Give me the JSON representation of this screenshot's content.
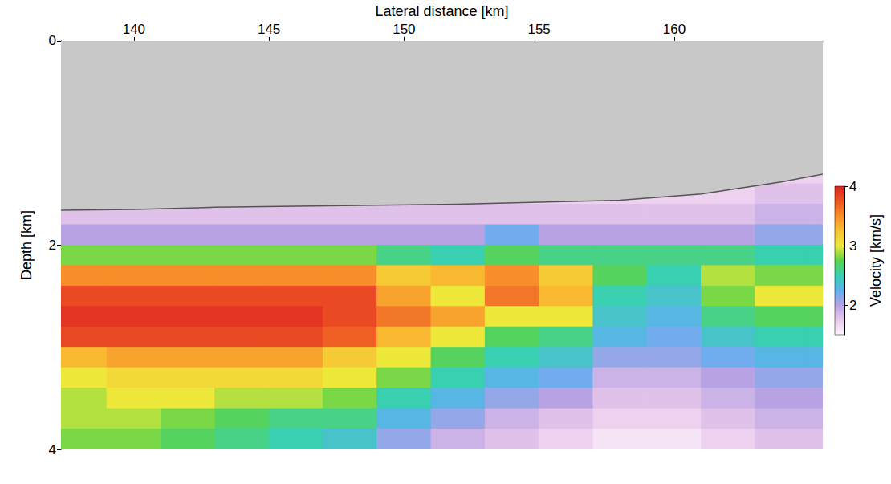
{
  "chart_data": {
    "type": "heatmap",
    "x_label": "Lateral distance [km]",
    "y_label": "Depth [km]",
    "xlim": [
      137.3,
      165.5
    ],
    "xticks": [
      140,
      145,
      150,
      155,
      160
    ],
    "ylim": [
      0,
      4
    ],
    "yticks": [
      0,
      2,
      4
    ],
    "x": [
      138,
      140,
      142,
      144,
      146,
      148,
      150,
      152,
      154,
      156,
      158,
      160,
      162,
      164,
      166
    ],
    "y": [
      0.1,
      0.3,
      0.5,
      0.7,
      0.9,
      1.1,
      1.3,
      1.5,
      1.7,
      1.9,
      2.1,
      2.3,
      2.5,
      2.7,
      2.9,
      3.1,
      3.3,
      3.5,
      3.7,
      3.9
    ],
    "values": [
      [
        null,
        null,
        null,
        null,
        null,
        null,
        null,
        null,
        null,
        null,
        null,
        null,
        null,
        null,
        null
      ],
      [
        null,
        null,
        null,
        null,
        null,
        null,
        null,
        null,
        null,
        null,
        null,
        null,
        null,
        null,
        null
      ],
      [
        null,
        null,
        null,
        null,
        null,
        null,
        null,
        null,
        null,
        null,
        null,
        null,
        null,
        null,
        null
      ],
      [
        null,
        null,
        null,
        null,
        null,
        null,
        null,
        null,
        null,
        null,
        null,
        null,
        null,
        null,
        null
      ],
      [
        null,
        null,
        null,
        null,
        null,
        null,
        null,
        null,
        null,
        null,
        null,
        null,
        null,
        null,
        null
      ],
      [
        null,
        null,
        null,
        null,
        null,
        null,
        null,
        null,
        null,
        null,
        null,
        null,
        null,
        null,
        null
      ],
      [
        1.7,
        1.7,
        1.7,
        1.7,
        1.7,
        1.7,
        1.7,
        1.7,
        1.7,
        1.7,
        1.7,
        1.7,
        1.7,
        1.7,
        1.7
      ],
      [
        1.7,
        1.7,
        1.7,
        1.7,
        1.7,
        1.7,
        1.7,
        1.7,
        1.7,
        1.7,
        1.7,
        1.7,
        1.7,
        1.8,
        1.8
      ],
      [
        1.8,
        1.8,
        1.8,
        1.8,
        1.8,
        1.8,
        1.8,
        1.8,
        1.8,
        1.8,
        1.8,
        1.8,
        1.8,
        1.9,
        1.9
      ],
      [
        2.0,
        2.0,
        2.0,
        2.0,
        2.0,
        2.0,
        2.0,
        2.0,
        2.2,
        2.0,
        2.0,
        2.0,
        2.0,
        2.1,
        2.1
      ],
      [
        2.8,
        2.8,
        2.8,
        2.8,
        2.8,
        2.8,
        2.6,
        2.5,
        2.7,
        2.6,
        2.6,
        2.6,
        2.6,
        2.5,
        2.5
      ],
      [
        3.5,
        3.5,
        3.5,
        3.5,
        3.5,
        3.5,
        3.2,
        3.3,
        3.5,
        3.2,
        2.7,
        2.5,
        2.9,
        2.8,
        2.8
      ],
      [
        3.8,
        3.8,
        3.8,
        3.8,
        3.8,
        3.8,
        3.4,
        3.0,
        3.6,
        3.3,
        2.5,
        2.4,
        2.8,
        3.0,
        3.0
      ],
      [
        3.9,
        3.9,
        3.9,
        3.9,
        3.9,
        3.8,
        3.6,
        3.4,
        3.0,
        3.0,
        2.4,
        2.3,
        2.6,
        2.7,
        2.7
      ],
      [
        3.8,
        3.8,
        3.8,
        3.8,
        3.8,
        3.7,
        3.3,
        3.0,
        2.7,
        2.6,
        2.3,
        2.2,
        2.4,
        2.5,
        2.5
      ],
      [
        3.3,
        3.4,
        3.4,
        3.4,
        3.4,
        3.2,
        3.0,
        2.7,
        2.5,
        2.4,
        2.1,
        2.1,
        2.2,
        2.3,
        2.3
      ],
      [
        3.0,
        3.1,
        3.1,
        3.1,
        3.1,
        3.0,
        2.8,
        2.5,
        2.3,
        2.2,
        1.9,
        1.9,
        2.0,
        2.1,
        2.1
      ],
      [
        2.9,
        3.0,
        3.0,
        2.9,
        2.9,
        2.8,
        2.5,
        2.3,
        2.1,
        2.0,
        1.8,
        1.8,
        1.9,
        2.0,
        2.0
      ],
      [
        2.9,
        2.9,
        2.8,
        2.7,
        2.6,
        2.6,
        2.3,
        2.1,
        1.9,
        1.8,
        1.7,
        1.7,
        1.8,
        1.9,
        1.9
      ],
      [
        2.8,
        2.8,
        2.7,
        2.6,
        2.5,
        2.4,
        2.1,
        1.9,
        1.8,
        1.7,
        1.6,
        1.6,
        1.7,
        1.8,
        1.8
      ]
    ],
    "colorbar": {
      "label": "Velocity [km/s]",
      "range": [
        1.5,
        4
      ],
      "ticks": [
        2,
        3,
        4
      ]
    },
    "seabed": {
      "x": [
        137,
        140,
        143,
        146,
        149,
        152,
        155,
        158,
        161,
        164,
        166
      ],
      "depth": [
        1.66,
        1.65,
        1.63,
        1.62,
        1.61,
        1.6,
        1.58,
        1.56,
        1.5,
        1.38,
        1.28
      ]
    }
  }
}
